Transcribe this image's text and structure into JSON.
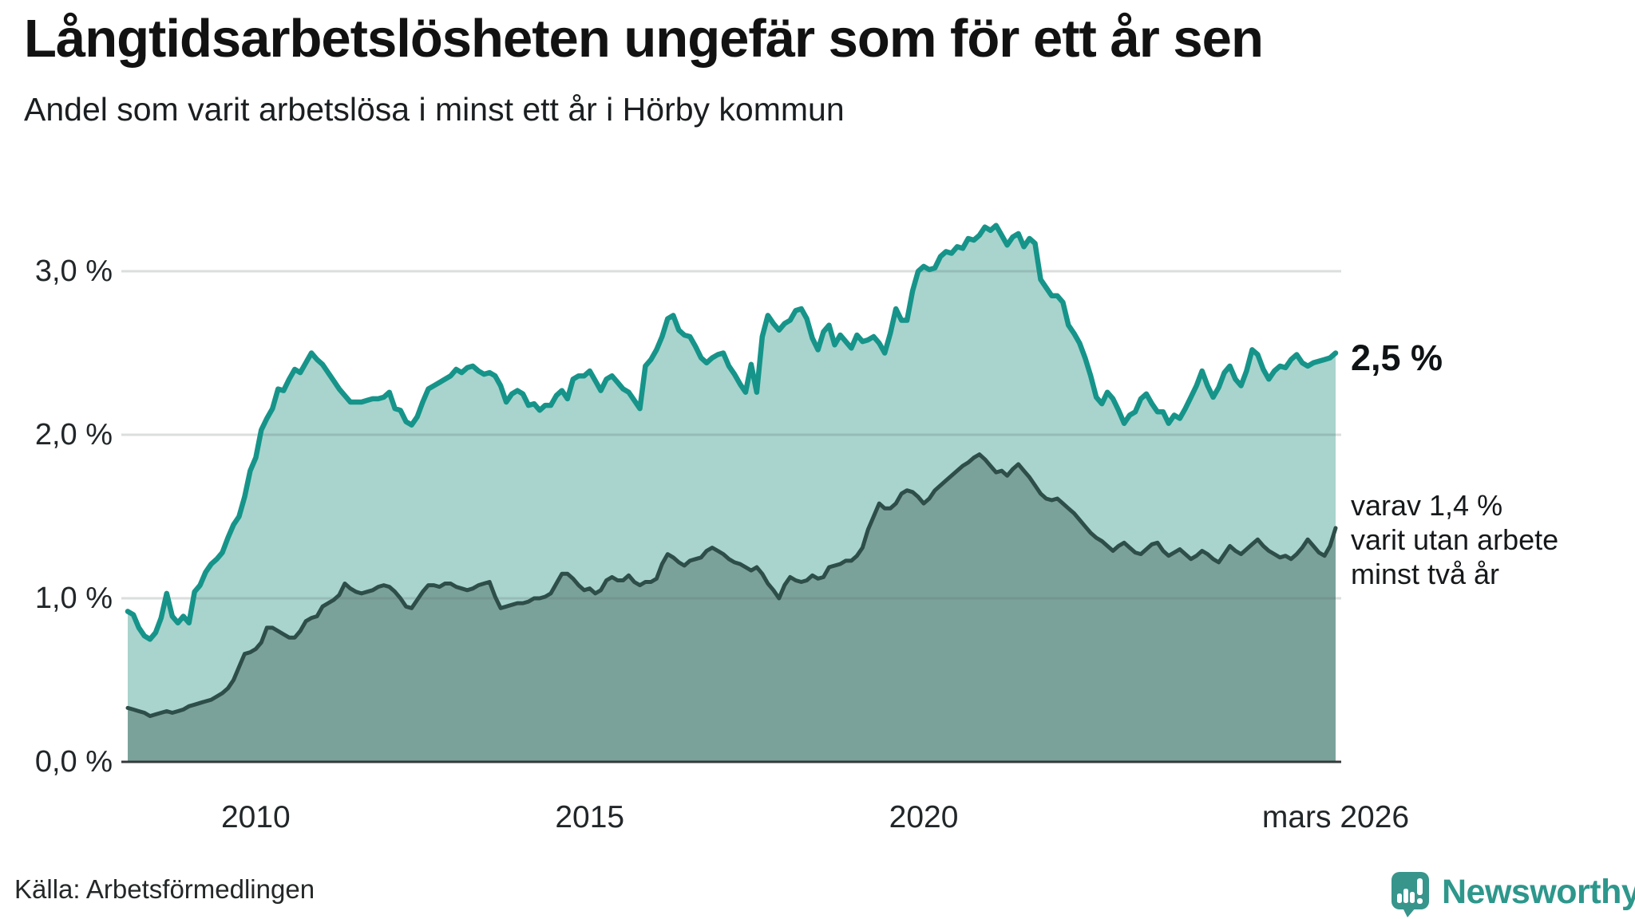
{
  "header": {
    "title": "Långtidsarbetslösheten ungefär som för ett år sen",
    "subtitle": "Andel som varit arbetslösa i minst ett år i Hörby kommun"
  },
  "chart_data": {
    "type": "area",
    "title": "Långtidsarbetslösheten ungefär som för ett år sen",
    "subtitle": "Andel som varit arbetslösa i minst ett år i Hörby kommun",
    "unit": "%",
    "x_start": "2008-02",
    "x_end": "2026-03",
    "frequency": "monthly",
    "ylim": [
      0,
      3.4
    ],
    "grid": true,
    "legend_position": "none",
    "y_ticks": [
      {
        "label": "0,0 %",
        "value": 0
      },
      {
        "label": "1,0 %",
        "value": 1
      },
      {
        "label": "2,0 %",
        "value": 2
      },
      {
        "label": "3,0 %",
        "value": 3
      }
    ],
    "x_ticks": [
      {
        "label": "2010",
        "index": 23
      },
      {
        "label": "2015",
        "index": 83
      },
      {
        "label": "2020",
        "index": 143
      },
      {
        "label": "mars 2026",
        "index": 217
      }
    ],
    "series": [
      {
        "name": "Andel arbetslösa minst ett år",
        "line_color": "#16948A",
        "fill_color": "#A8D4CD",
        "line_width": 6.5,
        "values": [
          0.92,
          0.9,
          0.82,
          0.77,
          0.75,
          0.79,
          0.88,
          1.03,
          0.89,
          0.85,
          0.89,
          0.85,
          1.04,
          1.08,
          1.16,
          1.21,
          1.24,
          1.28,
          1.37,
          1.45,
          1.5,
          1.62,
          1.78,
          1.86,
          2.03,
          2.1,
          2.16,
          2.28,
          2.27,
          2.34,
          2.4,
          2.38,
          2.44,
          2.5,
          2.46,
          2.43,
          2.38,
          2.33,
          2.28,
          2.24,
          2.2,
          2.2,
          2.2,
          2.21,
          2.22,
          2.22,
          2.23,
          2.26,
          2.16,
          2.15,
          2.08,
          2.06,
          2.11,
          2.2,
          2.28,
          2.3,
          2.32,
          2.34,
          2.36,
          2.4,
          2.38,
          2.41,
          2.42,
          2.39,
          2.37,
          2.38,
          2.36,
          2.3,
          2.2,
          2.25,
          2.27,
          2.25,
          2.18,
          2.19,
          2.15,
          2.18,
          2.18,
          2.24,
          2.27,
          2.22,
          2.34,
          2.36,
          2.36,
          2.39,
          2.33,
          2.27,
          2.34,
          2.36,
          2.32,
          2.28,
          2.26,
          2.21,
          2.16,
          2.42,
          2.46,
          2.52,
          2.6,
          2.71,
          2.73,
          2.64,
          2.61,
          2.6,
          2.54,
          2.47,
          2.44,
          2.47,
          2.49,
          2.5,
          2.42,
          2.37,
          2.31,
          2.26,
          2.43,
          2.26,
          2.6,
          2.73,
          2.68,
          2.64,
          2.68,
          2.7,
          2.76,
          2.77,
          2.71,
          2.59,
          2.52,
          2.63,
          2.67,
          2.55,
          2.61,
          2.57,
          2.53,
          2.61,
          2.57,
          2.58,
          2.6,
          2.56,
          2.5,
          2.62,
          2.77,
          2.7,
          2.7,
          2.88,
          3.0,
          3.03,
          3.01,
          3.02,
          3.09,
          3.12,
          3.11,
          3.15,
          3.14,
          3.2,
          3.19,
          3.22,
          3.27,
          3.25,
          3.28,
          3.22,
          3.16,
          3.21,
          3.23,
          3.15,
          3.2,
          3.17,
          2.95,
          2.9,
          2.85,
          2.85,
          2.81,
          2.67,
          2.62,
          2.56,
          2.47,
          2.36,
          2.23,
          2.19,
          2.26,
          2.22,
          2.15,
          2.07,
          2.12,
          2.14,
          2.22,
          2.25,
          2.19,
          2.14,
          2.14,
          2.07,
          2.12,
          2.1,
          2.16,
          2.23,
          2.3,
          2.39,
          2.3,
          2.23,
          2.29,
          2.38,
          2.42,
          2.34,
          2.3,
          2.39,
          2.52,
          2.49,
          2.4,
          2.34,
          2.39,
          2.42,
          2.41,
          2.46,
          2.49,
          2.44,
          2.42,
          2.44,
          2.45,
          2.46,
          2.47,
          2.5
        ]
      },
      {
        "name": "varav utan arbete minst två år",
        "line_color": "#2E4E4A",
        "fill_color": "#7AA29B",
        "line_width": 5,
        "values": [
          0.33,
          0.32,
          0.31,
          0.3,
          0.28,
          0.29,
          0.3,
          0.31,
          0.3,
          0.31,
          0.32,
          0.34,
          0.35,
          0.36,
          0.37,
          0.38,
          0.4,
          0.42,
          0.45,
          0.5,
          0.58,
          0.66,
          0.67,
          0.69,
          0.73,
          0.82,
          0.82,
          0.8,
          0.78,
          0.76,
          0.76,
          0.8,
          0.86,
          0.88,
          0.89,
          0.95,
          0.97,
          0.99,
          1.02,
          1.09,
          1.06,
          1.04,
          1.03,
          1.04,
          1.05,
          1.07,
          1.08,
          1.07,
          1.04,
          1.0,
          0.95,
          0.94,
          0.99,
          1.04,
          1.08,
          1.08,
          1.07,
          1.09,
          1.09,
          1.07,
          1.06,
          1.05,
          1.06,
          1.08,
          1.09,
          1.1,
          1.01,
          0.94,
          0.95,
          0.96,
          0.97,
          0.97,
          0.98,
          1.0,
          1.0,
          1.01,
          1.03,
          1.09,
          1.15,
          1.15,
          1.12,
          1.08,
          1.05,
          1.06,
          1.03,
          1.05,
          1.11,
          1.13,
          1.11,
          1.11,
          1.14,
          1.1,
          1.08,
          1.1,
          1.1,
          1.12,
          1.21,
          1.27,
          1.25,
          1.22,
          1.2,
          1.23,
          1.24,
          1.25,
          1.29,
          1.31,
          1.29,
          1.27,
          1.24,
          1.22,
          1.21,
          1.19,
          1.17,
          1.19,
          1.15,
          1.09,
          1.05,
          1.0,
          1.08,
          1.13,
          1.11,
          1.1,
          1.11,
          1.14,
          1.12,
          1.13,
          1.19,
          1.2,
          1.21,
          1.23,
          1.23,
          1.26,
          1.31,
          1.42,
          1.5,
          1.58,
          1.55,
          1.55,
          1.58,
          1.64,
          1.66,
          1.65,
          1.62,
          1.58,
          1.61,
          1.66,
          1.69,
          1.72,
          1.75,
          1.78,
          1.81,
          1.83,
          1.86,
          1.88,
          1.85,
          1.81,
          1.77,
          1.78,
          1.75,
          1.79,
          1.82,
          1.78,
          1.74,
          1.69,
          1.64,
          1.61,
          1.6,
          1.61,
          1.58,
          1.55,
          1.52,
          1.48,
          1.44,
          1.4,
          1.37,
          1.35,
          1.32,
          1.29,
          1.32,
          1.34,
          1.31,
          1.28,
          1.27,
          1.3,
          1.33,
          1.34,
          1.29,
          1.26,
          1.28,
          1.3,
          1.27,
          1.24,
          1.26,
          1.29,
          1.27,
          1.24,
          1.22,
          1.27,
          1.32,
          1.29,
          1.27,
          1.3,
          1.33,
          1.36,
          1.32,
          1.29,
          1.27,
          1.25,
          1.26,
          1.24,
          1.27,
          1.31,
          1.36,
          1.32,
          1.28,
          1.26,
          1.32,
          1.43
        ]
      }
    ],
    "annotations": {
      "end_label_total": "2,5 %",
      "end_label_sub": [
        "varav 1,4 %",
        "varit utan arbete",
        "minst två år"
      ]
    }
  },
  "footer": {
    "source": "Källa: Arbetsförmedlingen",
    "brand": "Newsworthy"
  },
  "colors": {
    "accent_teal": "#16948A",
    "fill_light": "#A8D4CD",
    "line_dark": "#2E4E4A",
    "fill_dark": "#7AA29B",
    "gridline": "#DFE2E4",
    "baseline": "#35393B",
    "brand": "#2D978C"
  }
}
